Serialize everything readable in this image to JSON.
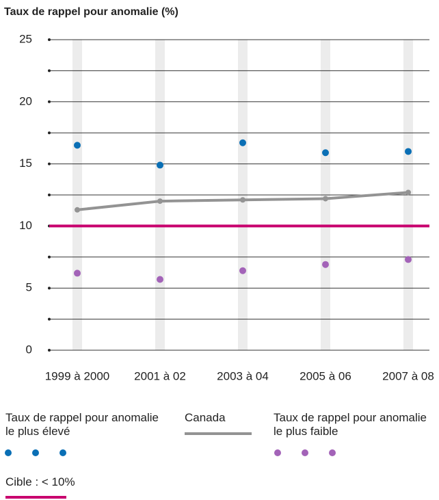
{
  "chart_data": {
    "type": "line",
    "title": "Taux de rappel pour anomalie (%)",
    "categories": [
      "1999 à 2000",
      "2001 à 02",
      "2003 à 04",
      "2005 à 06",
      "2007 à 08"
    ],
    "series": [
      {
        "name": "Taux de rappel pour anomalie le plus élevé",
        "color": "#0a6fb5",
        "style": "dots",
        "values": [
          16.5,
          14.9,
          16.7,
          15.9,
          16.0
        ]
      },
      {
        "name": "Canada",
        "color": "#939393",
        "style": "line",
        "values": [
          11.3,
          12.0,
          12.1,
          12.2,
          12.7
        ]
      },
      {
        "name": "Taux de rappel pour anomalie le plus faible",
        "color": "#a363b8",
        "style": "dots",
        "values": [
          6.2,
          5.7,
          6.4,
          6.9,
          7.3
        ]
      }
    ],
    "target": {
      "name": "Cible : < 10%",
      "value": 10,
      "color": "#c8006e"
    },
    "ylim": [
      0,
      25
    ],
    "yticks": [
      0,
      5,
      10,
      15,
      20,
      25
    ],
    "minor_yticks": [
      2.5,
      7.5,
      12.5,
      17.5,
      22.5
    ],
    "grid": true
  }
}
